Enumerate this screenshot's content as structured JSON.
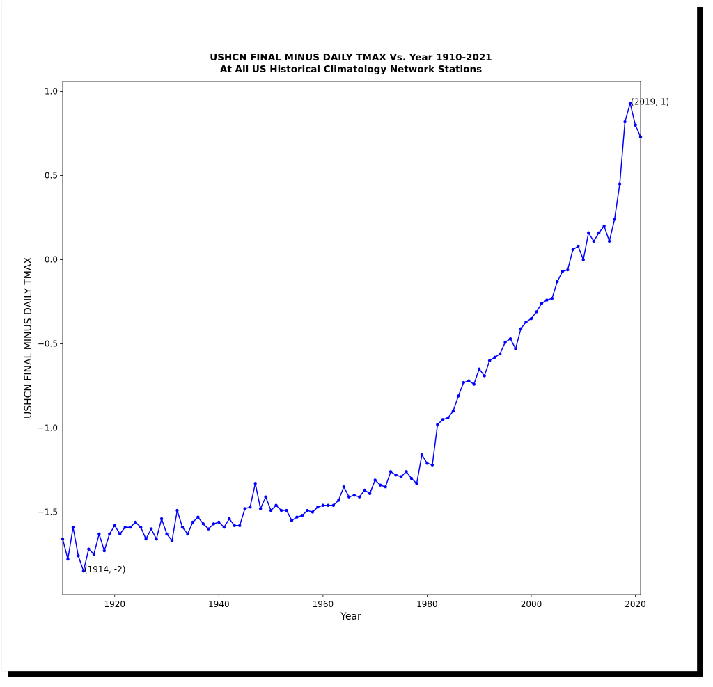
{
  "chart_data": {
    "type": "line",
    "title": "USHCN FINAL MINUS DAILY TMAX Vs. Year 1910-2021",
    "subtitle": "At All US Historical Climatology Network Stations",
    "xlabel": "Year",
    "ylabel": "USHCN FINAL MINUS DAILY TMAX",
    "xlim": [
      1910,
      2021
    ],
    "ylim": [
      -1.99,
      1.06
    ],
    "xticks": [
      1920,
      1940,
      1960,
      1980,
      2000,
      2020
    ],
    "yticks": [
      {
        "value": 1.0,
        "label": "1.0"
      },
      {
        "value": 0.5,
        "label": "0.5"
      },
      {
        "value": 0.0,
        "label": "0.0"
      },
      {
        "value": -0.5,
        "label": "−0.5"
      },
      {
        "value": -1.0,
        "label": "−1.0"
      },
      {
        "value": -1.5,
        "label": "−1.5"
      }
    ],
    "grid": false,
    "color": "#0000ff",
    "x": [
      1910,
      1911,
      1912,
      1913,
      1914,
      1915,
      1916,
      1917,
      1918,
      1919,
      1920,
      1921,
      1922,
      1923,
      1924,
      1925,
      1926,
      1927,
      1928,
      1929,
      1930,
      1931,
      1932,
      1933,
      1934,
      1935,
      1936,
      1937,
      1938,
      1939,
      1940,
      1941,
      1942,
      1943,
      1944,
      1945,
      1946,
      1947,
      1948,
      1949,
      1950,
      1951,
      1952,
      1953,
      1954,
      1955,
      1956,
      1957,
      1958,
      1959,
      1960,
      1961,
      1962,
      1963,
      1964,
      1965,
      1966,
      1967,
      1968,
      1969,
      1970,
      1971,
      1972,
      1973,
      1974,
      1975,
      1976,
      1977,
      1978,
      1979,
      1980,
      1981,
      1982,
      1983,
      1984,
      1985,
      1986,
      1987,
      1988,
      1989,
      1990,
      1991,
      1992,
      1993,
      1994,
      1995,
      1996,
      1997,
      1998,
      1999,
      2000,
      2001,
      2002,
      2003,
      2004,
      2005,
      2006,
      2007,
      2008,
      2009,
      2010,
      2011,
      2012,
      2013,
      2014,
      2015,
      2016,
      2017,
      2018,
      2019,
      2020,
      2021
    ],
    "y": [
      -1.66,
      -1.78,
      -1.59,
      -1.76,
      -1.85,
      -1.72,
      -1.75,
      -1.63,
      -1.73,
      -1.63,
      -1.58,
      -1.63,
      -1.59,
      -1.59,
      -1.56,
      -1.59,
      -1.66,
      -1.6,
      -1.66,
      -1.54,
      -1.63,
      -1.67,
      -1.49,
      -1.59,
      -1.63,
      -1.56,
      -1.53,
      -1.57,
      -1.6,
      -1.57,
      -1.56,
      -1.59,
      -1.54,
      -1.58,
      -1.58,
      -1.48,
      -1.47,
      -1.33,
      -1.48,
      -1.41,
      -1.49,
      -1.46,
      -1.49,
      -1.49,
      -1.55,
      -1.53,
      -1.52,
      -1.49,
      -1.5,
      -1.47,
      -1.46,
      -1.46,
      -1.46,
      -1.43,
      -1.35,
      -1.41,
      -1.4,
      -1.41,
      -1.37,
      -1.39,
      -1.31,
      -1.34,
      -1.35,
      -1.26,
      -1.28,
      -1.29,
      -1.26,
      -1.3,
      -1.33,
      -1.16,
      -1.21,
      -1.22,
      -0.98,
      -0.95,
      -0.94,
      -0.9,
      -0.81,
      -0.73,
      -0.72,
      -0.74,
      -0.65,
      -0.69,
      -0.6,
      -0.58,
      -0.56,
      -0.49,
      -0.47,
      -0.53,
      -0.41,
      -0.37,
      -0.35,
      -0.31,
      -0.26,
      -0.24,
      -0.23,
      -0.13,
      -0.07,
      -0.06,
      0.06,
      0.08,
      0.0,
      0.16,
      0.11,
      0.16,
      0.2,
      0.11,
      0.24,
      0.45,
      0.82,
      0.93,
      0.8,
      0.73
    ],
    "annotations": [
      {
        "x": 1914,
        "y": -1.85,
        "text": "(1914, -2)"
      },
      {
        "x": 2019,
        "y": 0.93,
        "text": "(2019, 1)"
      }
    ]
  }
}
